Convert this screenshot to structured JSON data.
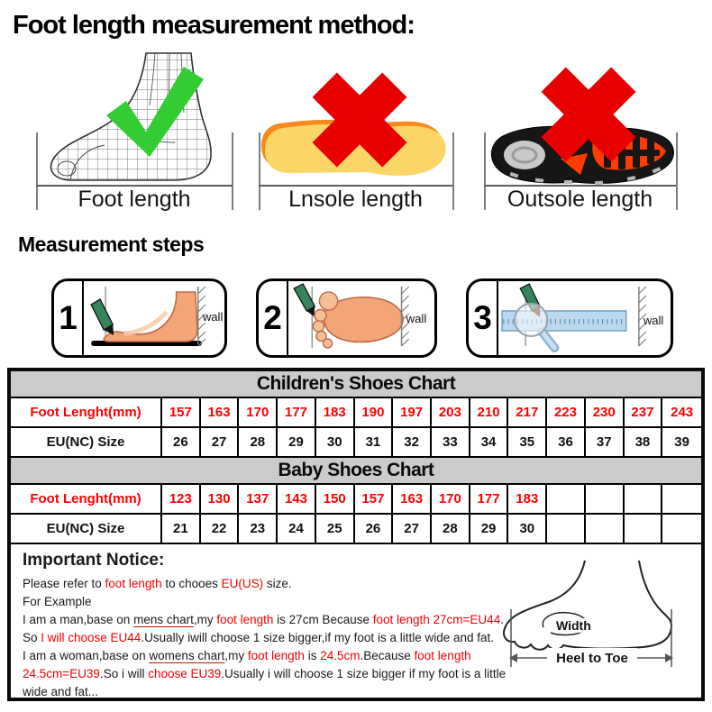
{
  "title": "Foot length measurement method:",
  "method": {
    "items": [
      {
        "label": "Foot length",
        "icon": "green-check-icon",
        "status": "correct"
      },
      {
        "label": "Lnsole length",
        "icon": "red-cross-icon",
        "status": "wrong"
      },
      {
        "label": "Outsole length",
        "icon": "red-cross-icon",
        "status": "wrong"
      }
    ]
  },
  "steps": {
    "heading": "Measurement steps",
    "wall_label": "wall",
    "items": [
      {
        "number": "1"
      },
      {
        "number": "2"
      },
      {
        "number": "3"
      }
    ]
  },
  "charts": [
    {
      "title": "Children's Shoes Chart",
      "rows": [
        {
          "label": "Foot Lenght(mm)",
          "color": "red",
          "values": [
            "157",
            "163",
            "170",
            "177",
            "183",
            "190",
            "197",
            "203",
            "210",
            "217",
            "223",
            "230",
            "237",
            "243"
          ]
        },
        {
          "label": "EU(NC) Size",
          "color": "black",
          "values": [
            "26",
            "27",
            "28",
            "29",
            "30",
            "31",
            "32",
            "33",
            "34",
            "35",
            "36",
            "37",
            "38",
            "39"
          ]
        }
      ]
    },
    {
      "title": "Baby Shoes Chart",
      "rows": [
        {
          "label": "Foot Lenght(mm)",
          "color": "red",
          "values": [
            "123",
            "130",
            "137",
            "143",
            "150",
            "157",
            "163",
            "170",
            "177",
            "183",
            "",
            "",
            "",
            ""
          ]
        },
        {
          "label": "EU(NC) Size",
          "color": "black",
          "values": [
            "21",
            "22",
            "23",
            "24",
            "25",
            "26",
            "27",
            "28",
            "29",
            "30",
            "",
            "",
            "",
            ""
          ]
        }
      ]
    }
  ],
  "notice": {
    "heading": "Important Notice:",
    "lines": [
      [
        {
          "t": "Please refer to ",
          "s": "k"
        },
        {
          "t": "foot length",
          "s": "r"
        },
        {
          "t": " to chooes ",
          "s": "k"
        },
        {
          "t": "EU(US)",
          "s": "r"
        },
        {
          "t": " size.",
          "s": "k"
        }
      ],
      [
        {
          "t": "For Example",
          "s": "k"
        }
      ],
      [
        {
          "t": "I am a man,base on ",
          "s": "k"
        },
        {
          "t": "mens chart",
          "s": "u"
        },
        {
          "t": ",my ",
          "s": "k"
        },
        {
          "t": "foot length",
          "s": "r"
        },
        {
          "t": " is 27cm Because ",
          "s": "k"
        },
        {
          "t": "foot length 27cm=EU44",
          "s": "r"
        },
        {
          "t": ".",
          "s": "k"
        }
      ],
      [
        {
          "t": "So ",
          "s": "k"
        },
        {
          "t": "I will choose EU44",
          "s": "r"
        },
        {
          "t": ".Usually iwill choose 1 size bigger,if my foot is a little wide and fat.",
          "s": "k"
        }
      ],
      [
        {
          "t": "I am a woman,base on ",
          "s": "k"
        },
        {
          "t": "womens chart",
          "s": "u"
        },
        {
          "t": ",my ",
          "s": "k"
        },
        {
          "t": "foot length",
          "s": "r"
        },
        {
          "t": " is ",
          "s": "k"
        },
        {
          "t": "24.5cm",
          "s": "r"
        },
        {
          "t": ".Because ",
          "s": "k"
        },
        {
          "t": "foot length",
          "s": "r"
        }
      ],
      [
        {
          "t": "24.5cm=EU39",
          "s": "r"
        },
        {
          "t": ".So i will ",
          "s": "k"
        },
        {
          "t": "choose EU39",
          "s": "r"
        },
        {
          "t": ".Usually i will choose 1 size bigger if my foot is a little",
          "s": "k"
        }
      ],
      [
        {
          "t": "wide and fat...",
          "s": "k"
        }
      ]
    ]
  },
  "foot_diagram": {
    "width_label": "Width",
    "heel_to_toe_label": "Heel to Toe"
  },
  "colors": {
    "accent_red_text": "#ff0000",
    "check_green": "#33cc33",
    "cross_red": "#e80000",
    "table_header_gray": "#cbcbcb",
    "insole_yellow": "#fbd566",
    "insole_orange": "#f68a1e"
  }
}
